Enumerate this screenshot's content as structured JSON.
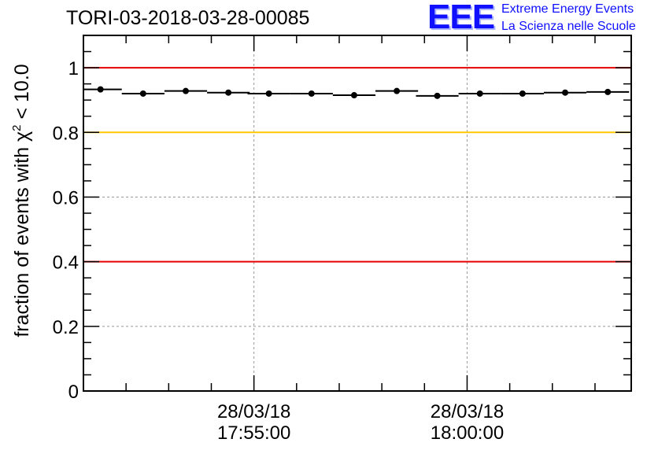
{
  "title": "TORI-03-2018-03-28-00085",
  "logo": {
    "mark": "EEE",
    "line1": "Extreme Energy Events",
    "line2": "La Scienza nelle Scuole"
  },
  "colors": {
    "upper_limit_line": "#e60000",
    "lower_limit_line": "#e60000",
    "reference_line": "#ffc800",
    "points": "#000000",
    "logo": "#1010ff"
  },
  "chart_data": {
    "type": "scatter",
    "title": "TORI-03-2018-03-28-00085",
    "ylabel": "fraction of events with χ² < 10.0",
    "ylabel_parts": {
      "prefix": "fraction of events with ",
      "chi": "χ",
      "sup": "2",
      "suffix": " < 10.0"
    },
    "ylim": [
      0,
      1.1
    ],
    "yticks": [
      0,
      0.2,
      0.4,
      0.6,
      0.8,
      1
    ],
    "ytick_labels": [
      "0",
      "0.2",
      "0.4",
      "0.6",
      "0.8",
      "1"
    ],
    "xlim_minutes": [
      -4.0,
      8.85
    ],
    "xticks": [
      {
        "minute": 0,
        "date": "28/03/18",
        "time": "17:55:00"
      },
      {
        "minute": 5,
        "date": "28/03/18",
        "time": "18:00:00"
      }
    ],
    "x_minutes_from_17_55": [
      -3.6,
      -2.6,
      -1.6,
      -0.6,
      0.35,
      1.35,
      2.35,
      3.35,
      4.3,
      5.3,
      6.3,
      7.3,
      8.3
    ],
    "values": [
      0.933,
      0.92,
      0.928,
      0.923,
      0.92,
      0.92,
      0.915,
      0.928,
      0.913,
      0.92,
      0.92,
      0.923,
      0.925
    ],
    "bin_halfwidth_minutes": 0.5,
    "reference_lines": [
      {
        "y": 1.0,
        "color": "#e60000"
      },
      {
        "y": 0.8,
        "color": "#ffc800"
      },
      {
        "y": 0.4,
        "color": "#e60000"
      }
    ],
    "grid": true,
    "legend": "none"
  }
}
